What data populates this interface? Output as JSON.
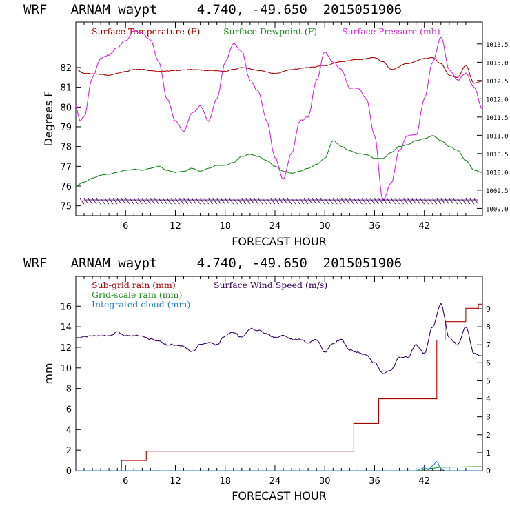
{
  "chart_data": [
    {
      "type": "line",
      "title": "WRF   ARNAM waypt     4.740, -49.650  2015051906",
      "xlabel": "FORECAST HOUR",
      "ylabel": "Degrees F",
      "xlim": [
        0,
        49
      ],
      "ylim": [
        74.5,
        84.3
      ],
      "y2lim": [
        1008.8,
        1014.1
      ],
      "x_ticks": [
        6,
        12,
        18,
        24,
        30,
        36,
        42
      ],
      "y_ticks": [
        75,
        76,
        77,
        78,
        79,
        80,
        81,
        82
      ],
      "y2_ticks": [
        "1009.0",
        "1009.5",
        "1010.0",
        "1010.5",
        "1011.0",
        "1011.5",
        "1012.0",
        "1012.5",
        "1013.0",
        "1013.5"
      ],
      "legend": [
        {
          "label": "Surface Temperature (F)",
          "color": "#b00000"
        },
        {
          "label": "Surface Dewpoint (F)",
          "color": "#1e8a1e"
        },
        {
          "label": "Surface Pressure (mb)",
          "color": "#e020e0"
        }
      ],
      "wind_barbs": {
        "y": 75.3,
        "color": "#3a0060",
        "spacing_hours": 0.5
      },
      "series": [
        {
          "name": "Surface Temperature (F)",
          "axis": "left",
          "color": "#b00000",
          "x": [
            0,
            1,
            3,
            4,
            5,
            6,
            7,
            8,
            9,
            10,
            12,
            14,
            16,
            18,
            19,
            20,
            22,
            24,
            26,
            28,
            30,
            32,
            34,
            36,
            37,
            38,
            40,
            42,
            43,
            44,
            45,
            46,
            47,
            48,
            49
          ],
          "y": [
            81.9,
            81.7,
            81.65,
            81.6,
            81.7,
            81.8,
            81.9,
            81.9,
            81.85,
            81.8,
            81.85,
            81.9,
            81.85,
            81.8,
            81.9,
            82.0,
            81.85,
            81.7,
            81.9,
            82.0,
            82.1,
            82.3,
            82.4,
            82.5,
            82.3,
            81.9,
            82.2,
            82.45,
            82.5,
            82.2,
            81.6,
            81.5,
            82.1,
            81.2,
            81.3
          ]
        },
        {
          "name": "Surface Dewpoint (F)",
          "axis": "left",
          "color": "#1e8a1e",
          "x": [
            0,
            1,
            2,
            3,
            4,
            5,
            6,
            7,
            8,
            9,
            10,
            11,
            12,
            13,
            14,
            15,
            16,
            17,
            18,
            19,
            20,
            21,
            22,
            23,
            24,
            25,
            26,
            27,
            28,
            29,
            30,
            31,
            32,
            33,
            34,
            35,
            36,
            37,
            38,
            39,
            40,
            41,
            42,
            43,
            44,
            45,
            46,
            47,
            48,
            49
          ],
          "y": [
            76.0,
            76.2,
            76.4,
            76.55,
            76.6,
            76.7,
            76.8,
            76.85,
            76.8,
            76.9,
            77.0,
            76.8,
            76.7,
            76.75,
            76.9,
            76.75,
            76.9,
            77.05,
            77.05,
            77.2,
            77.5,
            77.6,
            77.5,
            77.3,
            77.0,
            76.75,
            76.65,
            76.75,
            76.9,
            77.1,
            77.4,
            78.3,
            78.0,
            77.8,
            77.65,
            77.6,
            77.4,
            77.4,
            77.7,
            78.0,
            78.1,
            78.3,
            78.4,
            78.55,
            78.3,
            78.0,
            77.8,
            77.3,
            76.8,
            76.7
          ]
        },
        {
          "name": "Surface Pressure (mb)",
          "axis": "right",
          "color": "#e020e0",
          "x": [
            0,
            0.5,
            1,
            2,
            3,
            4,
            5,
            6,
            7,
            8,
            9,
            10,
            11,
            12,
            13,
            14,
            15,
            16,
            17,
            18,
            19,
            20,
            21,
            22,
            23,
            24,
            25,
            26,
            27,
            28,
            29,
            30,
            31,
            32,
            33,
            34,
            35,
            36,
            37,
            38,
            39,
            40,
            41,
            42,
            43,
            44,
            45,
            46,
            47,
            48,
            49
          ],
          "y": [
            1011.8,
            1011.4,
            1011.5,
            1012.6,
            1013.1,
            1013.2,
            1013.4,
            1013.6,
            1013.85,
            1013.8,
            1013.6,
            1013.0,
            1012.0,
            1011.4,
            1011.1,
            1011.6,
            1011.8,
            1011.4,
            1012.0,
            1013.0,
            1013.5,
            1013.3,
            1012.5,
            1012.2,
            1011.4,
            1010.4,
            1009.8,
            1010.5,
            1011.4,
            1011.5,
            1012.5,
            1013.3,
            1013.0,
            1012.8,
            1012.3,
            1012.3,
            1012.0,
            1011.0,
            1009.2,
            1009.7,
            1010.6,
            1011.0,
            1011.0,
            1012.0,
            1013.0,
            1013.7,
            1012.8,
            1012.5,
            1012.7,
            1012.3,
            1011.7
          ]
        }
      ]
    },
    {
      "type": "line",
      "title": "WRF   ARNAM waypt     4.740, -49.650  2015051906",
      "xlabel": "FORECAST HOUR",
      "ylabel": "mm",
      "xlim": [
        0,
        49
      ],
      "ylim": [
        0,
        18.9
      ],
      "y2lim": [
        0,
        10.8
      ],
      "x_ticks": [
        6,
        12,
        18,
        24,
        30,
        36,
        42
      ],
      "y_ticks": [
        0,
        2,
        4,
        6,
        8,
        10,
        12,
        14,
        16
      ],
      "y2_ticks": [
        "0",
        "1",
        "2",
        "3",
        "4",
        "5",
        "6",
        "7",
        "8",
        "9"
      ],
      "legend": [
        {
          "label": "Sub-grid rain (mm)",
          "color": "#b00000"
        },
        {
          "label": "Surface Wind Speed (m/s)",
          "color": "#3a0060"
        },
        {
          "label": "Grid-scale rain (mm)",
          "color": "#1e8a1e"
        },
        {
          "label": "Integrated cloud (mm)",
          "color": "#1f7fd0"
        }
      ],
      "series": [
        {
          "name": "Sub-grid rain (mm)",
          "axis": "left",
          "color": "#b00000",
          "step": true,
          "x": [
            0,
            5.5,
            8.5,
            33.5,
            36.5,
            43.5,
            44.5,
            47,
            48.5,
            49
          ],
          "y": [
            0,
            1.0,
            1.9,
            4.6,
            7.0,
            12.7,
            14.5,
            15.8,
            16.2,
            16.2
          ]
        },
        {
          "name": "Grid-scale rain (mm)",
          "axis": "left",
          "color": "#1e8a1e",
          "x": [
            0,
            41.5,
            42,
            43,
            44,
            49
          ],
          "y": [
            0,
            0,
            0.15,
            0.25,
            0.35,
            0.4
          ]
        },
        {
          "name": "Integrated cloud (mm)",
          "axis": "left",
          "color": "#1f7fd0",
          "x": [
            0,
            41,
            42,
            42.5,
            43,
            43.5,
            44,
            44.5,
            49
          ],
          "y": [
            0,
            0,
            0.3,
            0.1,
            0.5,
            0.9,
            0.2,
            0,
            0
          ]
        },
        {
          "name": "Surface Wind Speed (m/s)",
          "axis": "right",
          "color": "#3a0060",
          "x": [
            0,
            2,
            4,
            5,
            6,
            8,
            9,
            10,
            11,
            12,
            13,
            14,
            15,
            16,
            17,
            18,
            19,
            20,
            21,
            22,
            23,
            24,
            25,
            26,
            27,
            28,
            29,
            30,
            31,
            32,
            33,
            34,
            35,
            36,
            37,
            38,
            39,
            40,
            41,
            42,
            43,
            44,
            45,
            46,
            47,
            48,
            49
          ],
          "y": [
            7.4,
            7.5,
            7.5,
            7.7,
            7.5,
            7.5,
            7.3,
            7.2,
            7.0,
            7.0,
            6.9,
            6.6,
            7.0,
            7.1,
            7.0,
            7.5,
            7.7,
            7.4,
            7.9,
            7.8,
            7.6,
            7.4,
            7.5,
            7.3,
            7.3,
            7.1,
            7.3,
            6.6,
            7.1,
            7.3,
            6.7,
            6.6,
            6.4,
            6.0,
            5.4,
            5.6,
            6.3,
            6.3,
            7.0,
            6.5,
            8.0,
            9.3,
            7.4,
            7.0,
            8.0,
            6.5,
            6.4
          ]
        }
      ]
    }
  ]
}
